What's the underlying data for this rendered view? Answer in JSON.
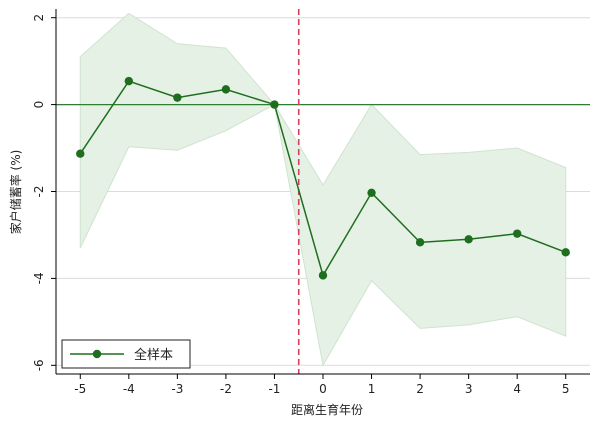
{
  "chart_data": {
    "type": "line",
    "title": "",
    "xlabel": "距离生育年份",
    "ylabel": "家户储蓄率 (%)",
    "x": [
      -5,
      -4,
      -3,
      -2,
      -1,
      0,
      1,
      2,
      3,
      4,
      5
    ],
    "xticks": [
      "-5",
      "-4",
      "-3",
      "-2",
      "-1",
      "0",
      "1",
      "2",
      "3",
      "4",
      "5"
    ],
    "yticks": [
      "-6",
      "-4",
      "-2",
      "0",
      "2"
    ],
    "xlim": [
      -5.5,
      5.5
    ],
    "ylim": [
      -6.2,
      2.2
    ],
    "grid": true,
    "series": [
      {
        "name": "全样本",
        "values": [
          -1.13,
          0.54,
          0.16,
          0.35,
          0.0,
          -3.93,
          -2.03,
          -3.17,
          -3.1,
          -2.97,
          -3.4
        ],
        "ci_upper": [
          1.1,
          2.1,
          1.4,
          1.3,
          0.0,
          -1.85,
          0.0,
          -1.15,
          -1.1,
          -1.0,
          -1.45
        ],
        "ci_lower": [
          -3.3,
          -0.97,
          -1.05,
          -0.6,
          0.0,
          -6.0,
          -4.05,
          -5.15,
          -5.07,
          -4.88,
          -5.33
        ]
      }
    ],
    "reference_lines": {
      "horizontal_y": 0,
      "vertical_x": -0.5
    },
    "legend_position": "bottom-left",
    "colors": {
      "series": "#1f6e1f",
      "ci_fill": "#e6f1e6",
      "ci_edge": "#cfe3cf",
      "zero_line": "#2e7d32",
      "event_line": "#d43f5e",
      "grid": "#dcdcdc",
      "axis": "#000000"
    }
  }
}
